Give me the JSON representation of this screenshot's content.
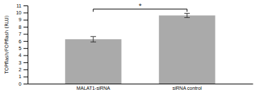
{
  "chart_data": {
    "type": "bar",
    "categories": [
      "MALAT1-siRNA",
      "siRNA control"
    ],
    "values": [
      6.25,
      9.6
    ],
    "errors": [
      0.38,
      0.3
    ],
    "color": "#aaaaaa",
    "ylabel": "TOPflash/FOPflash (RLU)",
    "ylim": [
      0,
      11
    ],
    "yticks": [
      0,
      1,
      2,
      3,
      4,
      5,
      6,
      7,
      8,
      9,
      10,
      11
    ],
    "annotations": [
      {
        "text": "*",
        "y": 10.5,
        "between": [
          "MALAT1-siRNA",
          "siRNA control"
        ]
      }
    ]
  }
}
